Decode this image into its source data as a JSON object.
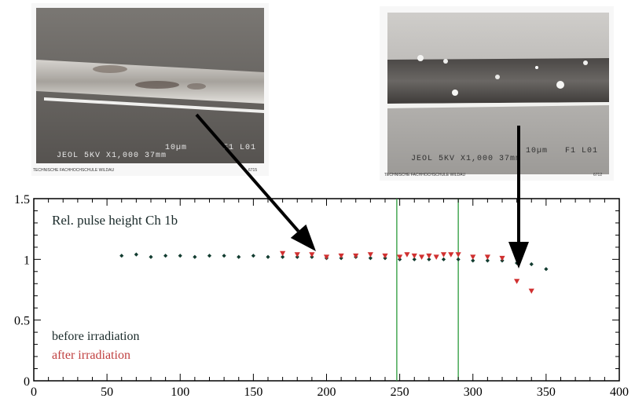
{
  "photos": [
    {
      "caption": "TECHNISCHE FACHHOCHSCHULE WILDAU",
      "label": "JEOL   5KV   X1,000  37mm",
      "scale": "10µm",
      "id": "F1 L01",
      "number": "6715"
    },
    {
      "caption": "TECHNISCHE FACHHOCHSCHULE WILDAU",
      "label": "JEOL   5KV   X1,000  37mm",
      "scale": "10µm",
      "id": "F1 L01",
      "number": "6712"
    }
  ],
  "colors": {
    "before": "#123c30",
    "after": "#d03030",
    "vlines": "#2a9a3a",
    "axis": "#000000"
  },
  "chart_data": {
    "type": "scatter",
    "title": "Rel. pulse height Ch 1b",
    "xlim": [
      0,
      400
    ],
    "ylim": [
      0,
      1.5
    ],
    "xticks": [
      0,
      50,
      100,
      150,
      200,
      250,
      300,
      350,
      400
    ],
    "yticks": [
      0,
      0.5,
      1,
      1.5
    ],
    "ytick_labels": [
      "0",
      "0.5",
      "1",
      "1.5"
    ],
    "vertical_lines": [
      248,
      290
    ],
    "legend": [
      "before irradiation",
      "after irradiation"
    ],
    "series": [
      {
        "name": "before irradiation",
        "x": [
          60,
          70,
          80,
          90,
          100,
          110,
          120,
          130,
          140,
          150,
          160,
          170,
          180,
          190,
          200,
          210,
          220,
          230,
          240,
          250,
          260,
          270,
          280,
          290,
          300,
          310,
          320,
          330,
          340,
          350
        ],
        "y": [
          1.03,
          1.04,
          1.02,
          1.03,
          1.03,
          1.02,
          1.03,
          1.03,
          1.02,
          1.03,
          1.02,
          1.02,
          1.02,
          1.02,
          1.01,
          1.01,
          1.02,
          1.01,
          1.01,
          1.0,
          1.0,
          1.0,
          1.0,
          1.0,
          0.99,
          0.99,
          0.99,
          0.97,
          0.96,
          0.92
        ]
      },
      {
        "name": "after irradiation",
        "x": [
          170,
          180,
          190,
          200,
          210,
          220,
          230,
          240,
          250,
          255,
          260,
          265,
          270,
          275,
          280,
          285,
          290,
          300,
          310,
          320,
          330,
          340
        ],
        "y": [
          1.05,
          1.04,
          1.04,
          1.02,
          1.03,
          1.03,
          1.04,
          1.03,
          1.02,
          1.04,
          1.03,
          1.02,
          1.03,
          1.02,
          1.04,
          1.04,
          1.04,
          1.02,
          1.02,
          1.01,
          0.82,
          0.74
        ]
      }
    ]
  }
}
